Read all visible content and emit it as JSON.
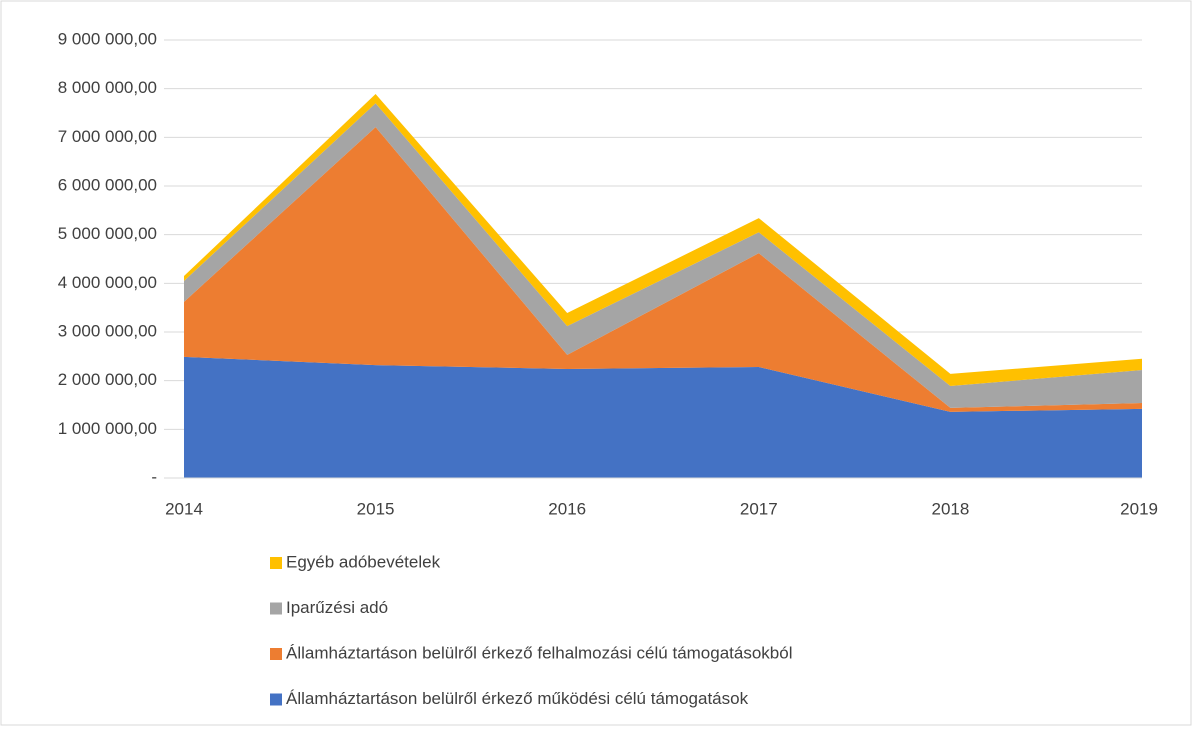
{
  "chart_data": {
    "type": "area",
    "stacked": true,
    "categories": [
      "2014",
      "2015",
      "2016",
      "2017",
      "2018",
      "2019"
    ],
    "series": [
      {
        "name": "Államháztartáson belülről érkező működési célú támogatások",
        "color": "#4472c4",
        "values": [
          2490000,
          2320000,
          2240000,
          2280000,
          1360000,
          1420000
        ]
      },
      {
        "name": "Államháztartáson belülről érkező felhalmozási célú támogatásokból",
        "color": "#ed7d31",
        "values": [
          1130000,
          4890000,
          290000,
          2340000,
          80000,
          120000
        ]
      },
      {
        "name": "Iparűzési adó",
        "color": "#a5a5a5",
        "values": [
          430000,
          490000,
          590000,
          430000,
          450000,
          680000
        ]
      },
      {
        "name": "Egyéb adóbevételek",
        "color": "#ffc000",
        "values": [
          100000,
          190000,
          270000,
          290000,
          250000,
          230000
        ]
      }
    ],
    "ylim": [
      0,
      9000000
    ],
    "yticks": [
      {
        "value": 0,
        "label": "-"
      },
      {
        "value": 1000000,
        "label": "1 000 000,00"
      },
      {
        "value": 2000000,
        "label": "2 000 000,00"
      },
      {
        "value": 3000000,
        "label": "3 000 000,00"
      },
      {
        "value": 4000000,
        "label": "4 000 000,00"
      },
      {
        "value": 5000000,
        "label": "5 000 000,00"
      },
      {
        "value": 6000000,
        "label": "6 000 000,00"
      },
      {
        "value": 7000000,
        "label": "7 000 000,00"
      },
      {
        "value": 8000000,
        "label": "8 000 000,00"
      },
      {
        "value": 9000000,
        "label": "9 000 000,00"
      }
    ],
    "grid": true,
    "legend": "bottom"
  }
}
